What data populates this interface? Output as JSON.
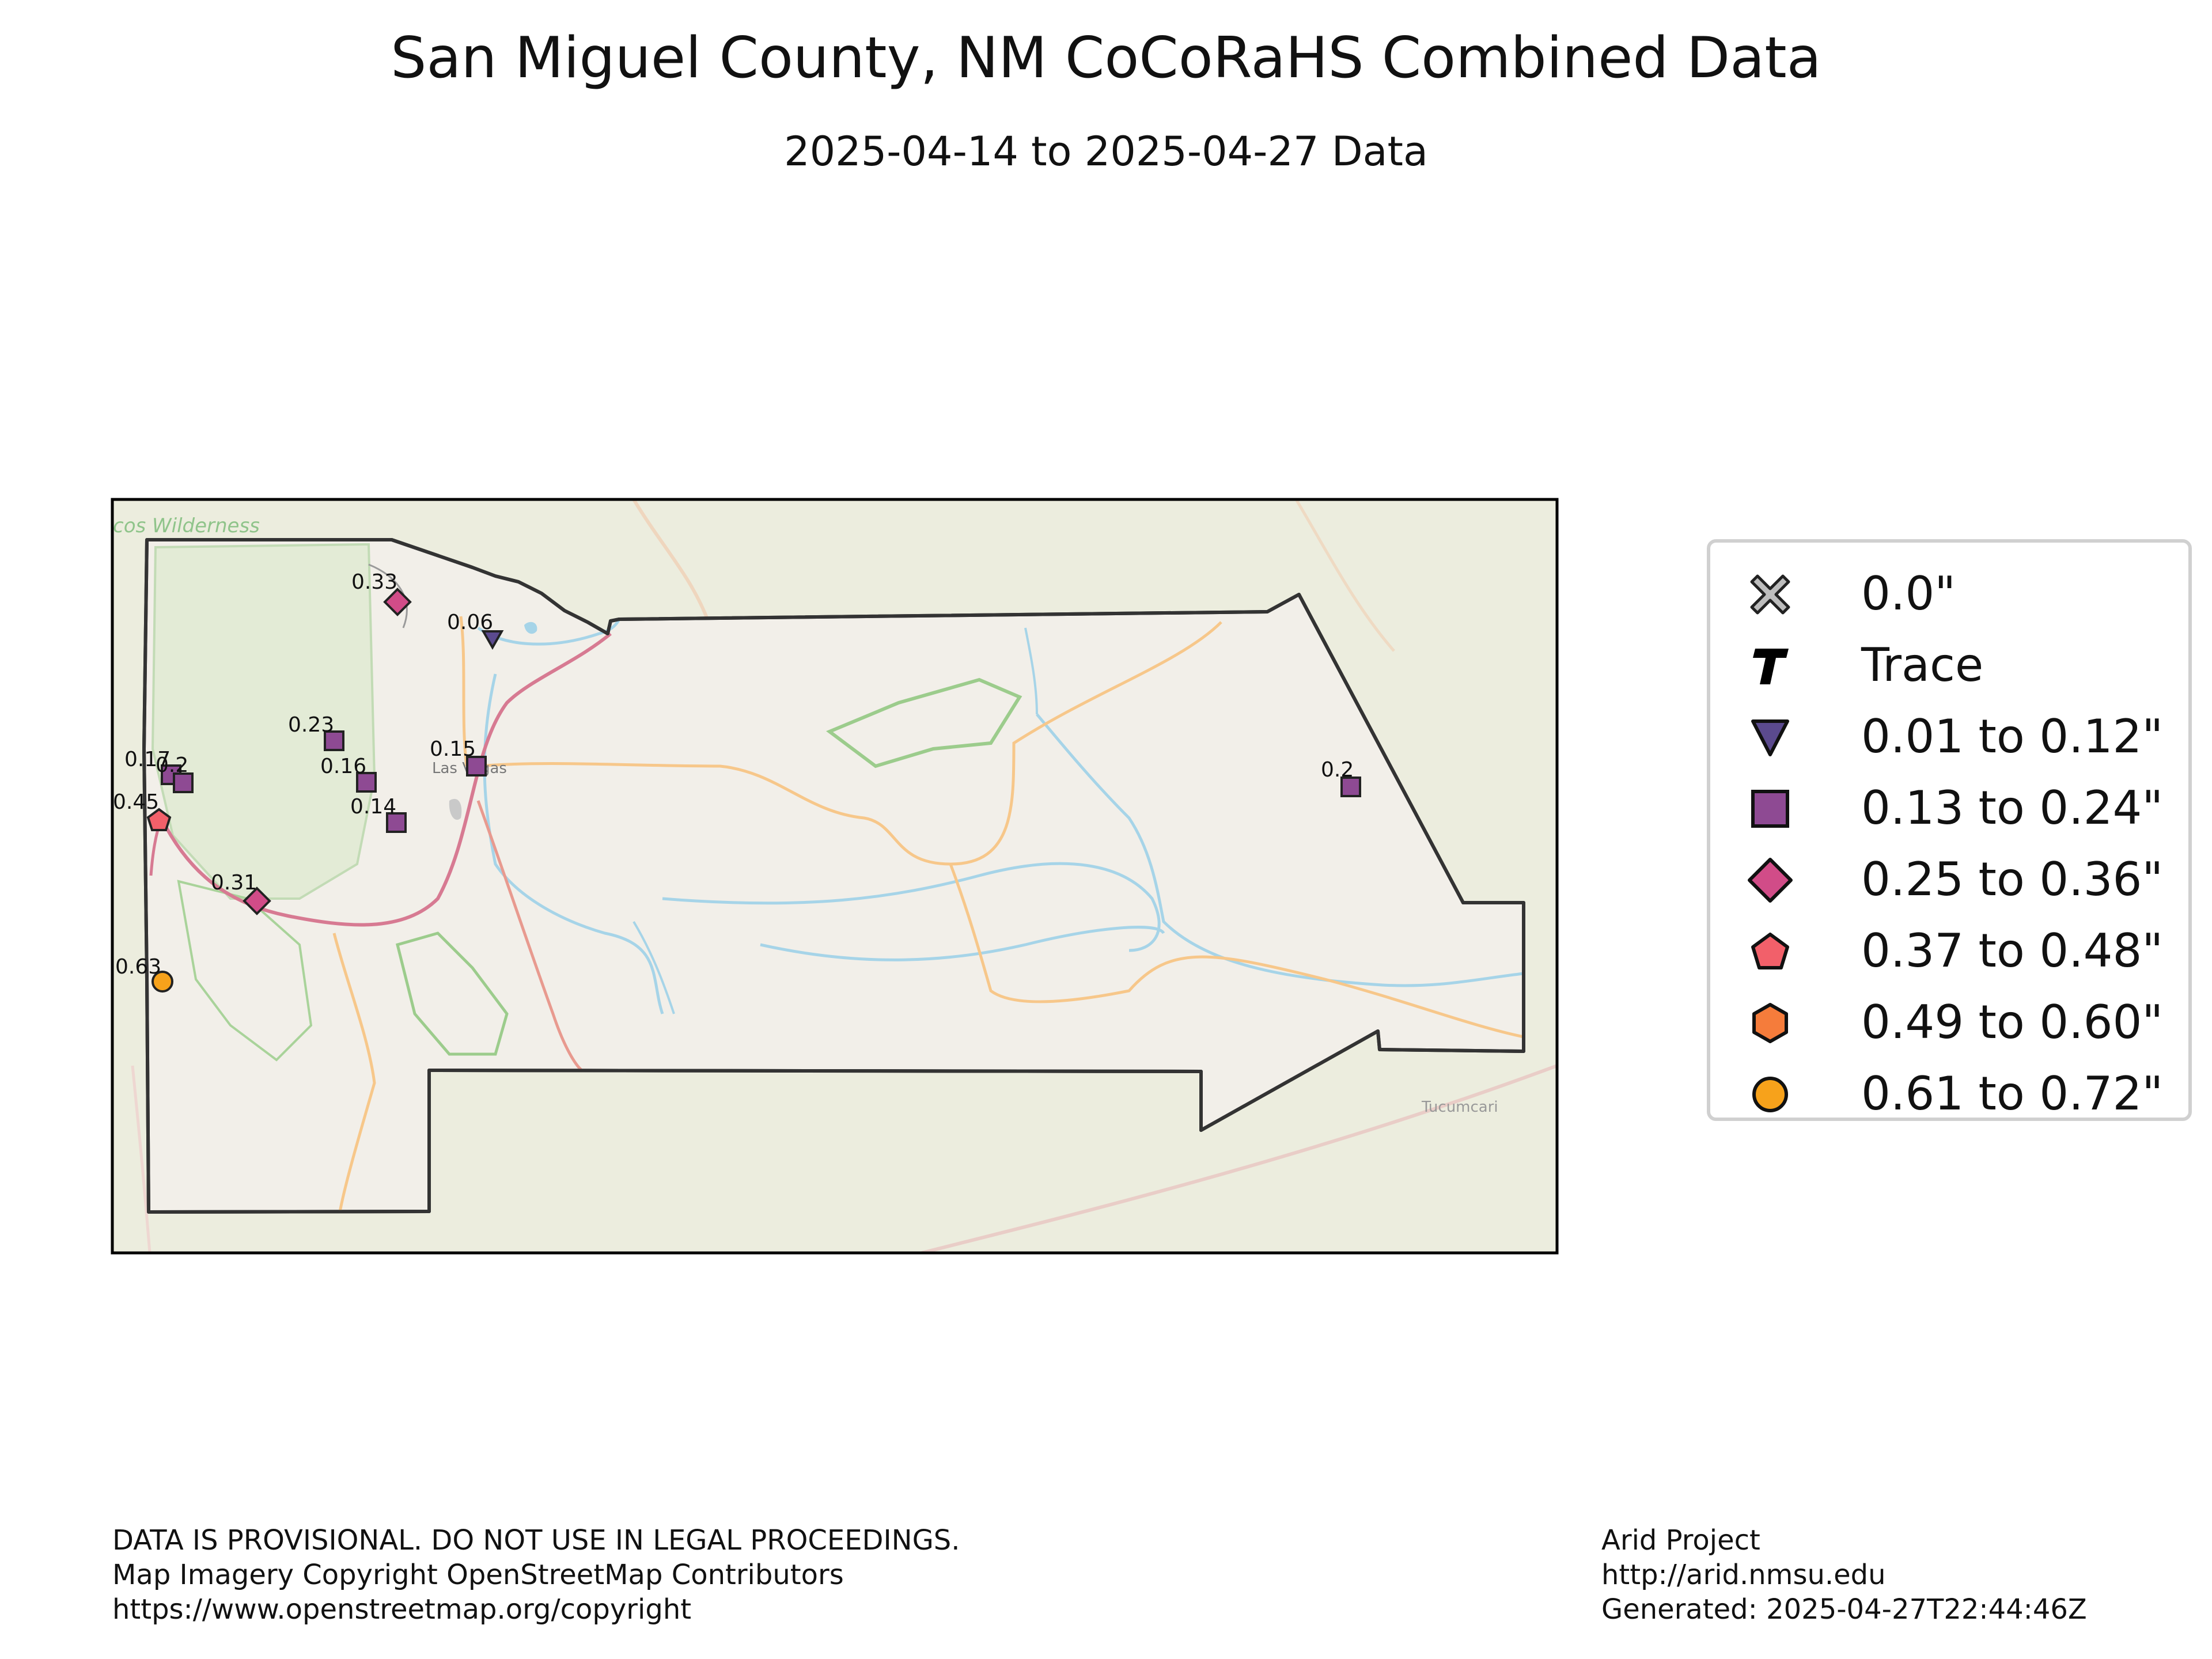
{
  "title": "San Miguel County, NM CoCoRaHS Combined Data",
  "subtitle": "2025-04-14 to 2025-04-27 Data",
  "map_labels": {
    "wilderness": "cos Wilderness",
    "las_vegas": "Las Vegas",
    "tucumcari": "Tucumcari"
  },
  "stations": [
    {
      "label": "0.33",
      "value": 0.33,
      "category": "0.25 to 0.36\""
    },
    {
      "label": "0.06",
      "value": 0.06,
      "category": "0.01 to 0.12\""
    },
    {
      "label": "0.23",
      "value": 0.23,
      "category": "0.13 to 0.24\""
    },
    {
      "label": "0.15",
      "value": 0.15,
      "category": "0.13 to 0.24\""
    },
    {
      "label": "0.17",
      "value": 0.17,
      "category": "0.13 to 0.24\""
    },
    {
      "label": "0.2",
      "value": 0.2,
      "category": "0.13 to 0.24\""
    },
    {
      "label": "0.16",
      "value": 0.16,
      "category": "0.13 to 0.24\""
    },
    {
      "label": "0.14",
      "value": 0.14,
      "category": "0.13 to 0.24\""
    },
    {
      "label": "0.45",
      "value": 0.45,
      "category": "0.37 to 0.48\""
    },
    {
      "label": "0.31",
      "value": 0.31,
      "category": "0.25 to 0.36\""
    },
    {
      "label": "0.63",
      "value": 0.63,
      "category": "0.61 to 0.72\""
    },
    {
      "label": "0.2",
      "value": 0.2,
      "category": "0.13 to 0.24\""
    }
  ],
  "legend": [
    {
      "label": "0.0\"",
      "symbol": "x-icon",
      "color": "#bdbdbd"
    },
    {
      "label": "Trace",
      "symbol": "t-icon",
      "color": "#000000"
    },
    {
      "label": "0.01 to 0.12\"",
      "symbol": "triangle-icon",
      "color": "#5b4a8e"
    },
    {
      "label": "0.13 to 0.24\"",
      "symbol": "square-icon",
      "color": "#8e4a93"
    },
    {
      "label": "0.25 to 0.36\"",
      "symbol": "diamond-icon",
      "color": "#d14c88"
    },
    {
      "label": "0.37 to 0.48\"",
      "symbol": "pentagon-icon",
      "color": "#f2606a"
    },
    {
      "label": "0.49 to 0.60\"",
      "symbol": "hexagon-icon",
      "color": "#f57c3b"
    },
    {
      "label": "0.61 to 0.72\"",
      "symbol": "circle-icon",
      "color": "#f7a21b"
    }
  ],
  "footer_left": [
    "DATA IS PROVISIONAL. DO NOT USE IN LEGAL PROCEEDINGS.",
    "Map Imagery Copyright OpenStreetMap Contributors",
    "https://www.openstreetmap.org/copyright"
  ],
  "footer_right": [
    "Arid Project",
    "http://arid.nmsu.edu",
    "Generated: 2025-04-27T22:44:46Z"
  ]
}
